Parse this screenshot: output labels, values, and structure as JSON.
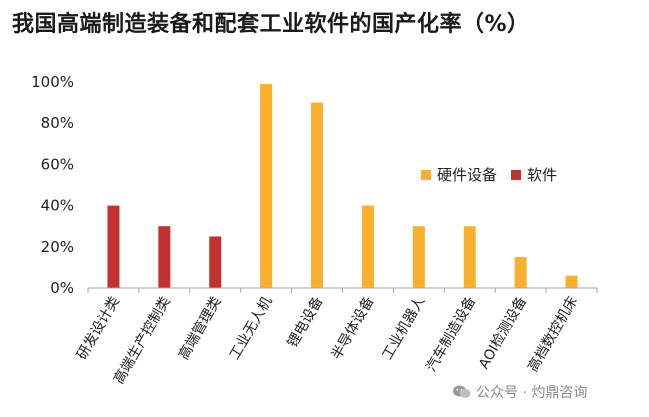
{
  "chart_data": {
    "type": "bar",
    "title": "我国高端制造装备和配套工业软件的国产化率（%）",
    "categories": [
      "研发设计类",
      "高端生产控制类",
      "高端管理类",
      "工业无人机",
      "锂电设备",
      "半导体设备",
      "工业机器人",
      "汽车制造设备",
      "AOI检测设备",
      "高档数控机床"
    ],
    "series": [
      {
        "name": "硬件设备",
        "color": "#FBB02D",
        "values": [
          null,
          null,
          null,
          99,
          90,
          40,
          30,
          30,
          15,
          6
        ]
      },
      {
        "name": "软件",
        "color": "#C0312F",
        "values": [
          40,
          30,
          25,
          null,
          null,
          null,
          null,
          null,
          null,
          null
        ]
      }
    ],
    "yticks": [
      "0%",
      "20%",
      "40%",
      "60%",
      "80%",
      "100%"
    ],
    "ylim": [
      0,
      100
    ],
    "legend_position": "right",
    "grid": false
  },
  "watermark": {
    "text": "公众号 · 灼鼎咨询",
    "icon": "wechat-icon"
  }
}
